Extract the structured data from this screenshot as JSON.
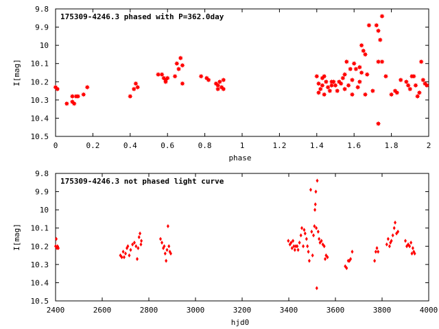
{
  "chart_data": [
    {
      "type": "scatter",
      "title": "175309-4246.3 phased with P=362.0day",
      "xlabel": "phase",
      "ylabel": "I[mag]",
      "xlim": [
        0,
        2
      ],
      "ylim": [
        9.8,
        10.5
      ],
      "y_inverted": true,
      "grid": false,
      "marker_color": "#ff0000",
      "marker": "filled-star",
      "xticks": [
        "0",
        "0.2",
        "0.4",
        "0.6",
        "0.8",
        "1",
        "1.2",
        "1.4",
        "1.6",
        "1.8",
        "2"
      ],
      "yticks": [
        "9.8",
        "9.9",
        "10",
        "10.1",
        "10.2",
        "10.3",
        "10.4",
        "10.5"
      ],
      "points": [
        [
          0.0,
          10.23
        ],
        [
          0.01,
          10.24
        ],
        [
          0.06,
          10.32
        ],
        [
          0.09,
          10.28
        ],
        [
          0.09,
          10.31
        ],
        [
          0.1,
          10.32
        ],
        [
          0.11,
          10.28
        ],
        [
          0.12,
          10.28
        ],
        [
          0.15,
          10.27
        ],
        [
          0.17,
          10.23
        ],
        [
          0.4,
          10.28
        ],
        [
          0.42,
          10.24
        ],
        [
          0.43,
          10.21
        ],
        [
          0.44,
          10.23
        ],
        [
          0.55,
          10.16
        ],
        [
          0.57,
          10.16
        ],
        [
          0.58,
          10.18
        ],
        [
          0.59,
          10.2
        ],
        [
          0.59,
          10.19
        ],
        [
          0.6,
          10.18
        ],
        [
          0.64,
          10.17
        ],
        [
          0.65,
          10.1
        ],
        [
          0.66,
          10.13
        ],
        [
          0.67,
          10.07
        ],
        [
          0.68,
          10.11
        ],
        [
          0.68,
          10.21
        ],
        [
          0.78,
          10.17
        ],
        [
          0.81,
          10.18
        ],
        [
          0.82,
          10.19
        ],
        [
          0.86,
          10.21
        ],
        [
          0.87,
          10.22
        ],
        [
          0.87,
          10.24
        ],
        [
          0.88,
          10.2
        ],
        [
          0.89,
          10.23
        ],
        [
          0.9,
          10.19
        ],
        [
          0.9,
          10.24
        ],
        [
          1.4,
          10.17
        ],
        [
          1.41,
          10.21
        ],
        [
          1.41,
          10.26
        ],
        [
          1.42,
          10.24
        ],
        [
          1.43,
          10.18
        ],
        [
          1.43,
          10.22
        ],
        [
          1.44,
          10.17
        ],
        [
          1.44,
          10.27
        ],
        [
          1.45,
          10.2
        ],
        [
          1.46,
          10.23
        ],
        [
          1.47,
          10.25
        ],
        [
          1.48,
          10.22
        ],
        [
          1.48,
          10.2
        ],
        [
          1.49,
          10.2
        ],
        [
          1.5,
          10.22
        ],
        [
          1.51,
          10.25
        ],
        [
          1.52,
          10.2
        ],
        [
          1.53,
          10.21
        ],
        [
          1.54,
          10.18
        ],
        [
          1.55,
          10.16
        ],
        [
          1.55,
          10.24
        ],
        [
          1.56,
          10.09
        ],
        [
          1.57,
          10.22
        ],
        [
          1.58,
          10.13
        ],
        [
          1.59,
          10.19
        ],
        [
          1.59,
          10.27
        ],
        [
          1.6,
          10.1
        ],
        [
          1.61,
          10.13
        ],
        [
          1.62,
          10.23
        ],
        [
          1.63,
          10.12
        ],
        [
          1.63,
          10.2
        ],
        [
          1.64,
          10.0
        ],
        [
          1.64,
          10.15
        ],
        [
          1.65,
          10.03
        ],
        [
          1.66,
          10.05
        ],
        [
          1.66,
          10.27
        ],
        [
          1.67,
          10.16
        ],
        [
          1.68,
          9.89
        ],
        [
          1.7,
          10.25
        ],
        [
          1.72,
          9.89
        ],
        [
          1.73,
          9.92
        ],
        [
          1.73,
          10.09
        ],
        [
          1.73,
          10.43
        ],
        [
          1.74,
          9.97
        ],
        [
          1.75,
          10.09
        ],
        [
          1.75,
          9.84
        ],
        [
          1.77,
          10.17
        ],
        [
          1.8,
          10.27
        ],
        [
          1.82,
          10.25
        ],
        [
          1.83,
          10.26
        ],
        [
          1.85,
          10.19
        ],
        [
          1.88,
          10.2
        ],
        [
          1.89,
          10.22
        ],
        [
          1.9,
          10.24
        ],
        [
          1.91,
          10.17
        ],
        [
          1.92,
          10.17
        ],
        [
          1.93,
          10.22
        ],
        [
          1.94,
          10.28
        ],
        [
          1.95,
          10.26
        ],
        [
          1.96,
          10.09
        ],
        [
          1.97,
          10.19
        ],
        [
          1.98,
          10.21
        ],
        [
          1.99,
          10.22
        ]
      ]
    },
    {
      "type": "scatter",
      "title": "175309-4246.3 not phased light curve",
      "xlabel": "hjd0",
      "ylabel": "I[mag]",
      "xlim": [
        2400,
        4000
      ],
      "ylim": [
        9.8,
        10.5
      ],
      "y_inverted": true,
      "grid": false,
      "marker_color": "#ff0000",
      "marker": "small-diamond",
      "xticks": [
        "2400",
        "2600",
        "2800",
        "3000",
        "3200",
        "3400",
        "3600",
        "3800",
        "4000"
      ],
      "yticks": [
        "9.8",
        "9.9",
        "10",
        "10.1",
        "10.2",
        "10.3",
        "10.4",
        "10.5"
      ],
      "points": [
        [
          2400,
          10.2
        ],
        [
          2403,
          10.16
        ],
        [
          2406,
          10.21
        ],
        [
          2408,
          10.2
        ],
        [
          2412,
          10.21
        ],
        [
          2678,
          10.25
        ],
        [
          2684,
          10.26
        ],
        [
          2690,
          10.23
        ],
        [
          2694,
          10.26
        ],
        [
          2700,
          10.24
        ],
        [
          2706,
          10.21
        ],
        [
          2710,
          10.2
        ],
        [
          2716,
          10.25
        ],
        [
          2722,
          10.22
        ],
        [
          2730,
          10.19
        ],
        [
          2738,
          10.18
        ],
        [
          2745,
          10.2
        ],
        [
          2750,
          10.27
        ],
        [
          2754,
          10.21
        ],
        [
          2758,
          10.15
        ],
        [
          2762,
          10.13
        ],
        [
          2766,
          10.19
        ],
        [
          2768,
          10.17
        ],
        [
          2850,
          10.16
        ],
        [
          2856,
          10.18
        ],
        [
          2862,
          10.21
        ],
        [
          2866,
          10.2
        ],
        [
          2870,
          10.24
        ],
        [
          2874,
          10.28
        ],
        [
          2878,
          10.22
        ],
        [
          2882,
          10.09
        ],
        [
          2886,
          10.2
        ],
        [
          2890,
          10.23
        ],
        [
          2894,
          10.24
        ],
        [
          3398,
          10.17
        ],
        [
          3405,
          10.19
        ],
        [
          3410,
          10.18
        ],
        [
          3414,
          10.21
        ],
        [
          3418,
          10.17
        ],
        [
          3422,
          10.2
        ],
        [
          3426,
          10.22
        ],
        [
          3430,
          10.2
        ],
        [
          3436,
          10.2
        ],
        [
          3440,
          10.22
        ],
        [
          3446,
          10.18
        ],
        [
          3452,
          10.14
        ],
        [
          3456,
          10.1
        ],
        [
          3462,
          10.2
        ],
        [
          3466,
          10.11
        ],
        [
          3470,
          10.13
        ],
        [
          3476,
          10.16
        ],
        [
          3480,
          10.2
        ],
        [
          3484,
          10.23
        ],
        [
          3488,
          10.28
        ],
        [
          3494,
          9.89
        ],
        [
          3498,
          10.12
        ],
        [
          3502,
          10.25
        ],
        [
          3506,
          10.14
        ],
        [
          3510,
          10.09
        ],
        [
          3512,
          10.0
        ],
        [
          3514,
          9.97
        ],
        [
          3516,
          9.9
        ],
        [
          3518,
          10.1
        ],
        [
          3520,
          10.43
        ],
        [
          3522,
          9.84
        ],
        [
          3526,
          10.12
        ],
        [
          3530,
          10.16
        ],
        [
          3534,
          10.18
        ],
        [
          3540,
          10.17
        ],
        [
          3546,
          10.19
        ],
        [
          3552,
          10.2
        ],
        [
          3556,
          10.27
        ],
        [
          3560,
          10.25
        ],
        [
          3566,
          10.26
        ],
        [
          3642,
          10.31
        ],
        [
          3648,
          10.32
        ],
        [
          3655,
          10.28
        ],
        [
          3660,
          10.28
        ],
        [
          3665,
          10.27
        ],
        [
          3672,
          10.23
        ],
        [
          3768,
          10.28
        ],
        [
          3773,
          10.23
        ],
        [
          3778,
          10.21
        ],
        [
          3783,
          10.23
        ],
        [
          3820,
          10.19
        ],
        [
          3826,
          10.16
        ],
        [
          3832,
          10.2
        ],
        [
          3836,
          10.18
        ],
        [
          3840,
          10.17
        ],
        [
          3846,
          10.14
        ],
        [
          3852,
          10.1
        ],
        [
          3856,
          10.07
        ],
        [
          3862,
          10.13
        ],
        [
          3868,
          10.12
        ],
        [
          3900,
          10.17
        ],
        [
          3906,
          10.2
        ],
        [
          3912,
          10.19
        ],
        [
          3918,
          10.2
        ],
        [
          3924,
          10.18
        ],
        [
          3928,
          10.24
        ],
        [
          3932,
          10.21
        ],
        [
          3936,
          10.23
        ],
        [
          3940,
          10.24
        ]
      ]
    }
  ]
}
